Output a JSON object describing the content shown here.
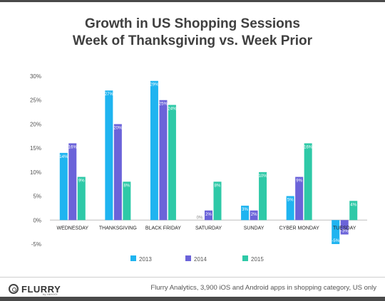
{
  "title_line1": "Growth in US Shopping Sessions",
  "title_line2": "Week of Thanksgiving vs. Week Prior",
  "footer": {
    "logo_text": "FLURRY",
    "logo_sub": "by YAHOO!",
    "source_text": "Flurry Analytics, 3,900 iOS and Android apps in shopping category, US only"
  },
  "chart_data": {
    "type": "bar",
    "categories": [
      "WEDNESDAY",
      "THANKSGIVING",
      "BLACK FRIDAY",
      "SATURDAY",
      "SUNDAY",
      "CYBER MONDAY",
      "TUESDAY"
    ],
    "series": [
      {
        "name": "2013",
        "color": "#1fb4f0",
        "values": [
          14,
          27,
          29,
          0,
          3,
          5,
          -5
        ]
      },
      {
        "name": "2014",
        "color": "#6b63d9",
        "values": [
          16,
          20,
          25,
          2,
          2,
          9,
          -3
        ]
      },
      {
        "name": "2015",
        "color": "#2ec9a7",
        "values": [
          9,
          8,
          24,
          8,
          10,
          16,
          4
        ]
      }
    ],
    "y_ticks": [
      "30%",
      "25%",
      "20%",
      "15%",
      "10%",
      "5%",
      "0%",
      "-5%"
    ],
    "ylim": [
      -5,
      30
    ],
    "data_label_suffix": "%",
    "legend_position": "bottom",
    "grid": false
  }
}
